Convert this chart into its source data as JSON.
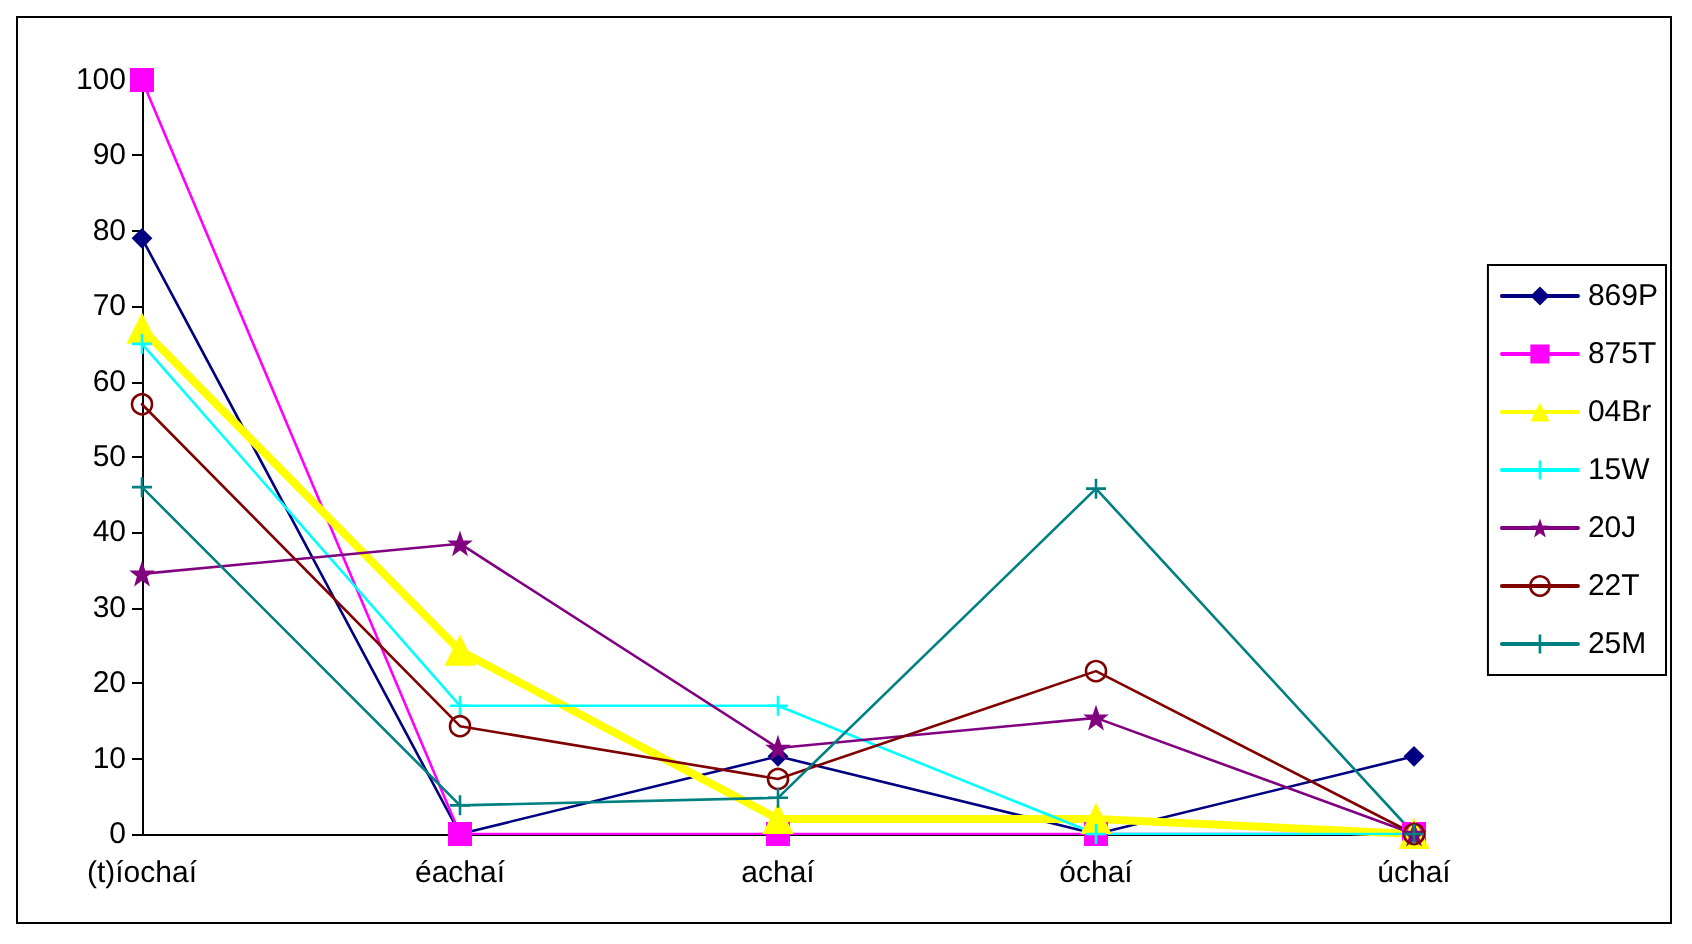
{
  "chart_data": {
    "type": "line",
    "categories": [
      "(t)íochaí",
      "éachaí",
      "achaí",
      "óchaí",
      "úchaí"
    ],
    "ylim": [
      0,
      100
    ],
    "yticks": [
      0,
      10,
      20,
      30,
      40,
      50,
      60,
      70,
      80,
      90,
      100
    ],
    "grid": false,
    "legend": "right",
    "series": [
      {
        "name": "869P",
        "color": "#000080",
        "marker": "diamond",
        "values": [
          79,
          0,
          10.3,
          0,
          10.3
        ]
      },
      {
        "name": "875T",
        "color": "#ff00ff",
        "marker": "square",
        "values": [
          100,
          0,
          0,
          0,
          0
        ]
      },
      {
        "name": "04Br",
        "color": "#ffff00",
        "marker": "triangle",
        "values": [
          67,
          24.3,
          2,
          2,
          0
        ]
      },
      {
        "name": "15W",
        "color": "#00ffff",
        "marker": "cross",
        "values": [
          65,
          17,
          17,
          0,
          0
        ]
      },
      {
        "name": "20J",
        "color": "#800080",
        "marker": "star",
        "values": [
          34.5,
          38.5,
          11.4,
          15.4,
          0
        ]
      },
      {
        "name": "22T",
        "color": "#800000",
        "marker": "circle",
        "values": [
          57,
          14.3,
          7.3,
          21.6,
          0
        ]
      },
      {
        "name": "25M",
        "color": "#008080",
        "marker": "cross",
        "values": [
          46,
          3.8,
          4.8,
          45.8,
          0
        ]
      }
    ]
  }
}
